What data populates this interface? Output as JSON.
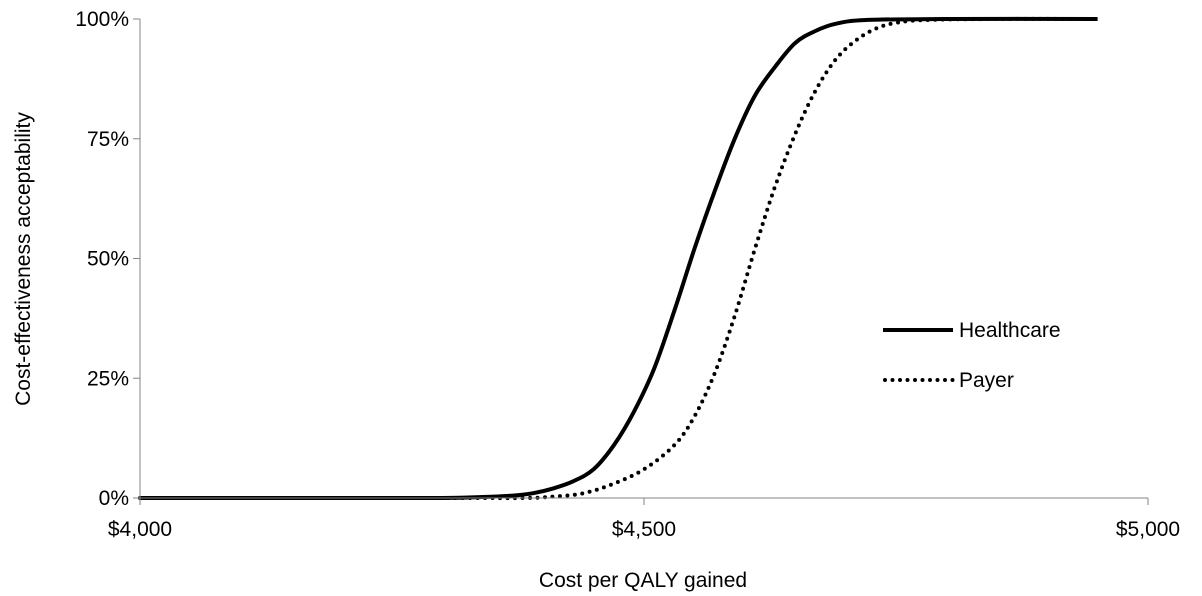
{
  "chart_data": {
    "type": "line",
    "xlabel": "Cost per QALY gained",
    "ylabel": "Cost-effectiveness acceptability",
    "xlim": [
      4000,
      5000
    ],
    "ylim": [
      0,
      100
    ],
    "x_ticks": [
      {
        "value": 4000,
        "label": "$4,000"
      },
      {
        "value": 4500,
        "label": "$4,500"
      },
      {
        "value": 5000,
        "label": "$5,000"
      }
    ],
    "y_ticks": [
      {
        "value": 0,
        "label": "0%"
      },
      {
        "value": 25,
        "label": "25%"
      },
      {
        "value": 50,
        "label": "50%"
      },
      {
        "value": 75,
        "label": "75%"
      },
      {
        "value": 100,
        "label": "100%"
      }
    ],
    "grid": false,
    "legend_position": "right",
    "series": [
      {
        "name": "Healthcare",
        "style": "solid",
        "color": "#000000",
        "points": [
          [
            4000,
            0
          ],
          [
            4200,
            0
          ],
          [
            4300,
            0
          ],
          [
            4340,
            0.2
          ],
          [
            4370,
            0.5
          ],
          [
            4390,
            1
          ],
          [
            4410,
            2
          ],
          [
            4430,
            3.5
          ],
          [
            4450,
            6
          ],
          [
            4470,
            11
          ],
          [
            4490,
            18
          ],
          [
            4510,
            27
          ],
          [
            4530,
            39
          ],
          [
            4550,
            52
          ],
          [
            4570,
            64
          ],
          [
            4590,
            75
          ],
          [
            4610,
            84
          ],
          [
            4630,
            90
          ],
          [
            4650,
            95
          ],
          [
            4670,
            97.5
          ],
          [
            4690,
            99
          ],
          [
            4720,
            99.8
          ],
          [
            4800,
            100
          ],
          [
            4950,
            100
          ]
        ]
      },
      {
        "name": "Payer",
        "style": "dotted",
        "color": "#000000",
        "points": [
          [
            4000,
            0
          ],
          [
            4300,
            0
          ],
          [
            4380,
            0
          ],
          [
            4410,
            0.3
          ],
          [
            4440,
            1
          ],
          [
            4470,
            3
          ],
          [
            4500,
            6
          ],
          [
            4530,
            11
          ],
          [
            4550,
            17
          ],
          [
            4570,
            26
          ],
          [
            4590,
            38
          ],
          [
            4610,
            52
          ],
          [
            4630,
            65
          ],
          [
            4650,
            76
          ],
          [
            4670,
            85
          ],
          [
            4690,
            91.5
          ],
          [
            4710,
            95.5
          ],
          [
            4730,
            98
          ],
          [
            4750,
            99.2
          ],
          [
            4780,
            99.8
          ],
          [
            4850,
            100
          ],
          [
            4950,
            100
          ]
        ]
      }
    ]
  }
}
